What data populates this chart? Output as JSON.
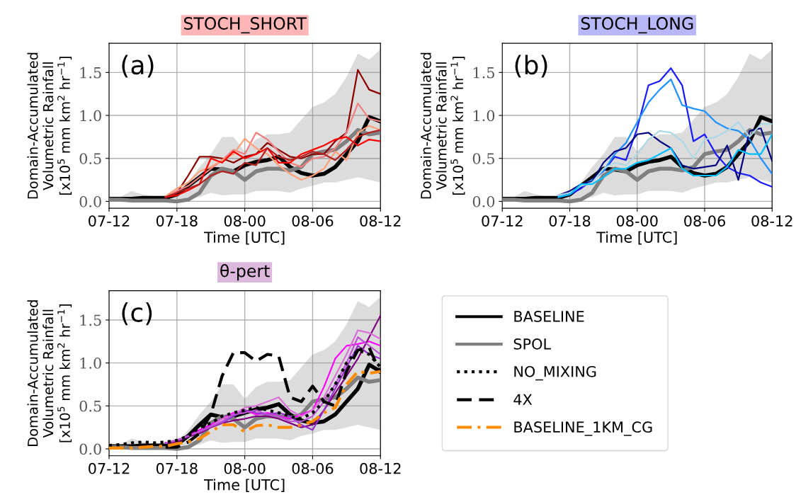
{
  "chart_data": [
    {
      "type": "line",
      "title": "STOCH_SHORT",
      "xlabel": "Time [UTC]",
      "ylabel": "Domain-Accumulated\nVolumetric Rainfall\n[x10$^{5}$ mm km$^{2}$ hr$^{−1}$]",
      "annotations": [
        "(a)"
      ],
      "categories": [
        "07-12",
        null,
        null,
        null,
        null,
        null,
        "07-18",
        null,
        null,
        null,
        null,
        null,
        "08-00",
        null,
        null,
        null,
        null,
        null,
        "08-06",
        null,
        null,
        null,
        null,
        null,
        "08-12"
      ],
      "ylim": [
        -0.08,
        1.84
      ],
      "yticks": [
        {
          "value": 0,
          "label": "0.0"
        },
        {
          "value": 0.5,
          "label": "0.5"
        },
        {
          "value": 1.0,
          "label": "1.0"
        },
        {
          "value": 1.5,
          "label": "1.5"
        }
      ],
      "grid": true,
      "series": [
        {
          "color": "#000000",
          "line_style": "solid",
          "values": [
            0.03,
            0.03,
            0.03,
            0.04,
            0.04,
            0.04,
            0.08,
            0.18,
            0.28,
            0.38,
            0.37,
            0.35,
            0.42,
            0.46,
            0.48,
            0.52,
            0.4,
            0.33,
            0.3,
            0.32,
            0.4,
            0.55,
            0.7,
            0.98,
            0.93
          ]
        },
        {
          "color": "#808080",
          "line_style": "solid",
          "values": [
            0.02,
            0.02,
            0.01,
            0.01,
            0.01,
            0.01,
            0.0,
            0.02,
            0.1,
            0.3,
            0.38,
            0.35,
            0.25,
            0.35,
            0.38,
            0.38,
            0.36,
            0.4,
            0.55,
            0.58,
            0.6,
            0.7,
            0.83,
            0.78,
            0.8
          ],
          "lower": [
            0.0,
            0.0,
            0.0,
            0.0,
            0.0,
            0.0,
            0.0,
            0.02,
            0.05,
            0.1,
            0.07,
            0.08,
            0.08,
            0.12,
            0.12,
            0.12,
            0.1,
            0.15,
            0.18,
            0.22,
            0.22,
            0.25,
            0.28,
            0.25,
            0.22
          ],
          "upper": [
            0.03,
            0.05,
            0.12,
            0.08,
            0.06,
            0.05,
            0.08,
            0.22,
            0.4,
            0.55,
            0.75,
            0.75,
            0.58,
            0.72,
            0.78,
            0.78,
            0.8,
            0.95,
            1.1,
            1.15,
            1.25,
            1.45,
            1.72,
            1.65,
            1.77
          ]
        },
        {
          "color": "#8b0000",
          "line_style": "solid",
          "values": [
            null,
            null,
            null,
            null,
            null,
            0.04,
            0.1,
            0.3,
            0.52,
            0.52,
            0.5,
            0.45,
            0.52,
            0.55,
            0.68,
            0.6,
            0.52,
            0.5,
            0.55,
            0.55,
            0.7,
            0.8,
            1.53,
            1.3,
            1.25
          ]
        },
        {
          "color": "#f08080",
          "line_style": "solid",
          "values": [
            null,
            null,
            null,
            null,
            null,
            0.06,
            0.12,
            0.18,
            0.28,
            0.38,
            0.48,
            0.6,
            0.55,
            0.8,
            0.72,
            0.58,
            0.45,
            0.4,
            0.5,
            0.52,
            0.62,
            0.8,
            1.14,
            0.96,
            0.93
          ]
        },
        {
          "color": "#ffa07a",
          "line_style": "solid",
          "values": [
            null,
            null,
            null,
            null,
            null,
            0.06,
            0.15,
            0.22,
            0.35,
            0.4,
            0.48,
            0.55,
            0.73,
            0.62,
            0.55,
            0.42,
            0.32,
            0.25,
            0.3,
            0.38,
            0.58,
            0.48,
            0.8,
            0.88,
            0.83
          ]
        },
        {
          "color": "#ff0000",
          "line_style": "solid",
          "values": [
            null,
            null,
            null,
            null,
            null,
            0.05,
            0.07,
            0.13,
            0.2,
            0.5,
            0.45,
            0.58,
            0.5,
            0.55,
            0.62,
            0.45,
            0.45,
            0.55,
            0.6,
            0.65,
            0.72,
            0.75,
            0.65,
            0.72,
            0.7
          ]
        },
        {
          "color": "#b22222",
          "line_style": "solid",
          "values": [
            null,
            null,
            null,
            null,
            null,
            0.05,
            0.1,
            0.15,
            0.2,
            0.3,
            0.35,
            0.32,
            0.45,
            0.42,
            0.62,
            0.52,
            0.48,
            0.52,
            0.58,
            0.55,
            0.48,
            0.6,
            0.75,
            0.8,
            0.83
          ]
        }
      ]
    },
    {
      "type": "line",
      "title": "STOCH_LONG",
      "xlabel": "Time [UTC]",
      "ylabel": "Domain-Accumulated\nVolumetric Rainfall\n[x10$^{5}$ mm km$^{2}$ hr$^{−1}$]",
      "annotations": [
        "(b)"
      ],
      "categories": [
        "07-12",
        null,
        null,
        null,
        null,
        null,
        "07-18",
        null,
        null,
        null,
        null,
        null,
        "08-00",
        null,
        null,
        null,
        null,
        null,
        "08-06",
        null,
        null,
        null,
        null,
        null,
        "08-12"
      ],
      "ylim": [
        -0.08,
        1.84
      ],
      "yticks": [
        {
          "value": 0,
          "label": "0.0"
        },
        {
          "value": 0.5,
          "label": "0.5"
        },
        {
          "value": 1.0,
          "label": "1.0"
        },
        {
          "value": 1.5,
          "label": "1.5"
        }
      ],
      "grid": true,
      "series": [
        {
          "color": "#000000",
          "line_style": "solid",
          "values": [
            0.03,
            0.03,
            0.03,
            0.04,
            0.04,
            0.04,
            0.08,
            0.18,
            0.28,
            0.38,
            0.37,
            0.35,
            0.42,
            0.46,
            0.48,
            0.52,
            0.4,
            0.33,
            0.3,
            0.32,
            0.4,
            0.55,
            0.7,
            0.98,
            0.93
          ]
        },
        {
          "color": "#808080",
          "line_style": "solid",
          "values": [
            0.02,
            0.02,
            0.01,
            0.01,
            0.01,
            0.01,
            0.0,
            0.02,
            0.1,
            0.3,
            0.38,
            0.35,
            0.25,
            0.35,
            0.38,
            0.38,
            0.36,
            0.4,
            0.55,
            0.58,
            0.6,
            0.7,
            0.83,
            0.78,
            0.8
          ],
          "lower": [
            0.0,
            0.0,
            0.0,
            0.0,
            0.0,
            0.0,
            0.0,
            0.02,
            0.05,
            0.1,
            0.07,
            0.08,
            0.08,
            0.12,
            0.12,
            0.12,
            0.1,
            0.15,
            0.18,
            0.22,
            0.22,
            0.25,
            0.28,
            0.25,
            0.22
          ],
          "upper": [
            0.03,
            0.05,
            0.12,
            0.08,
            0.06,
            0.05,
            0.08,
            0.22,
            0.4,
            0.55,
            0.75,
            0.75,
            0.58,
            0.72,
            0.78,
            0.78,
            0.8,
            0.95,
            1.1,
            1.15,
            1.25,
            1.45,
            1.72,
            1.65,
            1.77
          ]
        },
        {
          "color": "#1a1aff",
          "line_style": "solid",
          "values": [
            null,
            null,
            null,
            null,
            null,
            0.05,
            0.08,
            0.15,
            0.25,
            0.35,
            0.52,
            0.48,
            0.85,
            1.35,
            1.4,
            1.55,
            1.35,
            0.7,
            0.78,
            0.55,
            0.4,
            0.33,
            0.3,
            0.22,
            0.17
          ]
        },
        {
          "color": "#1e90ff",
          "line_style": "solid",
          "values": [
            null,
            null,
            null,
            null,
            null,
            0.06,
            0.08,
            0.18,
            0.25,
            0.35,
            0.55,
            0.68,
            0.92,
            1.15,
            1.3,
            1.42,
            1.12,
            1.08,
            1.05,
            0.92,
            0.85,
            0.82,
            0.72,
            0.5,
            0.32
          ]
        },
        {
          "color": "#000080",
          "line_style": "solid",
          "values": [
            null,
            null,
            null,
            null,
            null,
            0.07,
            0.12,
            0.2,
            0.23,
            0.45,
            0.58,
            0.62,
            0.78,
            0.8,
            0.7,
            0.62,
            0.42,
            0.38,
            0.4,
            0.42,
            0.65,
            0.25,
            0.82,
            0.85,
            0.47
          ]
        },
        {
          "color": "#add8e6",
          "line_style": "solid",
          "values": [
            null,
            null,
            null,
            null,
            null,
            0.07,
            0.1,
            0.18,
            0.22,
            0.38,
            0.45,
            0.42,
            0.55,
            0.72,
            0.82,
            0.8,
            0.7,
            0.5,
            0.72,
            0.75,
            0.82,
            0.92,
            0.75,
            0.9,
            0.9
          ]
        },
        {
          "color": "#00bfff",
          "line_style": "solid",
          "values": [
            null,
            null,
            null,
            null,
            null,
            0.05,
            0.08,
            0.2,
            0.2,
            0.28,
            0.38,
            0.38,
            0.45,
            0.48,
            0.55,
            0.62,
            0.38,
            0.3,
            0.3,
            0.3,
            0.4,
            0.6,
            0.55,
            0.55,
            0.78
          ]
        }
      ]
    },
    {
      "type": "line",
      "title": "θ-pert",
      "xlabel": "Time [UTC]",
      "ylabel": "Domain-Accumulated\nVolumetric Rainfall\n[x10$^{5}$ mm km$^{2}$ hr$^{−1}$]",
      "annotations": [
        "(c)"
      ],
      "categories": [
        "07-12",
        null,
        null,
        null,
        null,
        null,
        "07-18",
        null,
        null,
        null,
        null,
        null,
        "08-00",
        null,
        null,
        null,
        null,
        null,
        "08-06",
        null,
        null,
        null,
        null,
        null,
        "08-12"
      ],
      "ylim": [
        -0.08,
        1.84
      ],
      "yticks": [
        {
          "value": 0,
          "label": "0.0"
        },
        {
          "value": 0.5,
          "label": "0.5"
        },
        {
          "value": 1.0,
          "label": "1.0"
        },
        {
          "value": 1.5,
          "label": "1.5"
        }
      ],
      "grid": true,
      "legend": "right",
      "series": [
        {
          "name": "BASELINE",
          "color": "#000000",
          "line_style": "solid",
          "values": [
            0.03,
            0.03,
            0.03,
            0.04,
            0.04,
            0.04,
            0.05,
            0.15,
            0.28,
            0.4,
            0.37,
            0.38,
            0.42,
            0.46,
            0.48,
            0.52,
            0.4,
            0.33,
            0.3,
            0.32,
            0.4,
            0.55,
            0.7,
            0.98,
            0.9
          ]
        },
        {
          "name": "SPOL",
          "color": "#808080",
          "line_style": "solid",
          "values": [
            0.02,
            0.02,
            0.01,
            0.01,
            0.01,
            0.01,
            0.0,
            0.02,
            0.1,
            0.3,
            0.38,
            0.35,
            0.25,
            0.35,
            0.38,
            0.38,
            0.36,
            0.4,
            0.55,
            0.58,
            0.6,
            0.7,
            0.83,
            0.78,
            0.8
          ],
          "lower": [
            0.0,
            0.0,
            0.0,
            0.0,
            0.0,
            0.0,
            0.0,
            0.02,
            0.05,
            0.1,
            0.07,
            0.08,
            0.08,
            0.12,
            0.12,
            0.12,
            0.1,
            0.15,
            0.18,
            0.22,
            0.22,
            0.25,
            0.28,
            0.25,
            0.22
          ],
          "upper": [
            0.03,
            0.05,
            0.12,
            0.08,
            0.06,
            0.05,
            0.08,
            0.22,
            0.4,
            0.55,
            0.75,
            0.75,
            0.58,
            0.72,
            0.78,
            0.78,
            0.8,
            0.95,
            1.1,
            1.15,
            1.25,
            1.45,
            1.72,
            1.65,
            1.77
          ]
        },
        {
          "color": "#ff00ff",
          "line_style": "solid",
          "values": [
            null,
            null,
            null,
            null,
            null,
            0.07,
            0.08,
            0.15,
            0.22,
            0.28,
            0.35,
            0.42,
            0.45,
            0.4,
            0.42,
            0.38,
            0.35,
            0.4,
            0.45,
            0.72,
            1.05,
            1.2,
            1.22,
            1.25,
            1.2
          ]
        },
        {
          "color": "#800080",
          "line_style": "solid",
          "values": [
            null,
            null,
            null,
            null,
            null,
            0.07,
            0.08,
            0.14,
            0.18,
            0.25,
            0.3,
            0.33,
            0.35,
            0.38,
            0.38,
            0.35,
            0.3,
            0.25,
            0.28,
            0.45,
            0.65,
            0.85,
            1.05,
            1.3,
            1.55
          ]
        },
        {
          "color": "#da70d6",
          "line_style": "solid",
          "values": [
            null,
            null,
            null,
            null,
            null,
            0.07,
            0.1,
            0.15,
            0.2,
            0.26,
            0.35,
            0.4,
            0.48,
            0.5,
            0.55,
            0.6,
            0.45,
            0.38,
            0.45,
            0.6,
            0.85,
            1.1,
            1.38,
            1.35,
            1.28
          ]
        },
        {
          "color": "#9932cc",
          "line_style": "solid",
          "values": [
            null,
            null,
            null,
            null,
            null,
            0.07,
            0.1,
            0.15,
            0.2,
            0.26,
            0.3,
            0.38,
            0.45,
            0.42,
            0.4,
            0.42,
            0.38,
            0.28,
            0.22,
            0.45,
            0.7,
            0.95,
            1.2,
            1.1,
            1.05
          ]
        },
        {
          "color": "#ba55d3",
          "line_style": "solid",
          "values": [
            null,
            null,
            null,
            null,
            null,
            0.07,
            0.1,
            0.15,
            0.2,
            0.26,
            0.32,
            0.4,
            0.42,
            0.45,
            0.4,
            0.38,
            0.32,
            0.32,
            0.38,
            0.55,
            0.75,
            1.0,
            1.3,
            1.2,
            1.1
          ]
        },
        {
          "name": "NO_MIXING",
          "color": "#000000",
          "line_style": "dotted",
          "values": [
            0.04,
            0.05,
            0.07,
            0.08,
            0.07,
            0.08,
            0.1,
            0.15,
            0.25,
            0.3,
            0.38,
            0.42,
            0.45,
            0.48,
            0.45,
            0.42,
            0.38,
            0.35,
            0.42,
            0.55,
            0.75,
            1.0,
            1.15,
            1.1,
            0.95
          ]
        },
        {
          "name": "4X",
          "color": "#000000",
          "line_style": "dashed",
          "values": [
            null,
            null,
            null,
            null,
            null,
            0.02,
            0.02,
            0.08,
            0.18,
            0.4,
            0.85,
            1.12,
            1.12,
            1.02,
            1.1,
            1.08,
            0.6,
            0.55,
            0.73,
            0.55,
            0.5,
            0.9,
            1.15,
            1.18,
            0.88
          ]
        },
        {
          "name": "BASELINE_1KM_CG",
          "color": "#ff8c00",
          "line_style": "dashdot",
          "values": [
            0.01,
            0.01,
            0.01,
            0.02,
            0.03,
            0.03,
            0.06,
            0.08,
            0.12,
            0.2,
            0.28,
            0.28,
            0.2,
            0.27,
            0.28,
            0.25,
            0.25,
            0.28,
            0.32,
            0.42,
            0.48,
            0.75,
            0.9,
            0.88,
            0.9
          ]
        }
      ]
    }
  ]
}
